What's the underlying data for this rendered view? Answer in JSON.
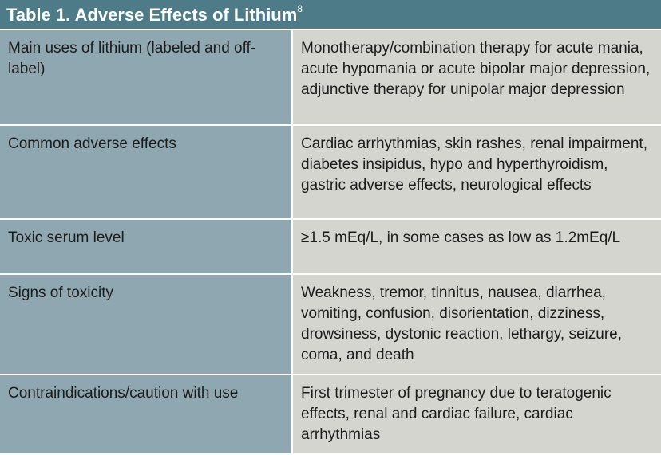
{
  "header": {
    "title": "Table 1. Adverse Effects of Lithium",
    "footnote": "8"
  },
  "table": {
    "rows": [
      [
        "Main uses of lithium (labeled and off-label)",
        "Monotherapy/combination therapy for acute mania, acute hypomania or acute bipolar major depression, adjunctive therapy for unipolar major depression"
      ],
      [
        "Common adverse effects",
        "Cardiac arrhythmias, skin rashes, renal impairment, diabetes insipidus, hypo and hyperthyroidism, gastric adverse effects, neurological effects"
      ],
      [
        "Toxic serum level",
        "≥1.5 mEq/L, in some cases as low as 1.2mEq/L"
      ],
      [
        "Signs of toxicity",
        "Weakness, tremor, tinnitus, nausea, diarrhea, vomiting, confusion, disorientation, dizziness, drowsiness, dystonic reaction, lethargy, seizure, coma, and death"
      ],
      [
        "Contraindications/caution with use",
        "First trimester of pregnancy due to teratogenic effects, renal and cardiac failure, cardiac arrhythmias"
      ]
    ]
  }
}
